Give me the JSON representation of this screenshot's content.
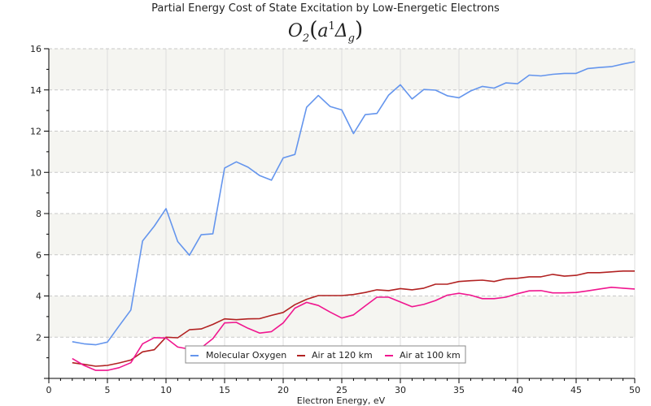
{
  "chart_data": {
    "type": "line",
    "title": "Partial Energy Cost of State Excitation by Low-Energetic Electrons",
    "subtitle": {
      "base": "O",
      "base_sub": "2",
      "open_paren": "(",
      "state": "a",
      "state_sup": "1",
      "term": "Δ",
      "term_sub": "g",
      "close_paren": ")"
    },
    "xlabel": "Electron Energy, eV",
    "ylabel": "",
    "xlim": [
      0,
      50
    ],
    "ylim": [
      0,
      16
    ],
    "x_ticks": [
      0,
      5,
      10,
      15,
      20,
      25,
      30,
      35,
      40,
      45,
      50
    ],
    "y_ticks": [
      2,
      4,
      6,
      8,
      10,
      12,
      14,
      16
    ],
    "grid": true,
    "legend_position": "bottom-center",
    "x": [
      2,
      3,
      4,
      5,
      6,
      7,
      8,
      9,
      10,
      11,
      12,
      13,
      14,
      15,
      16,
      17,
      18,
      19,
      20,
      21,
      22,
      23,
      24,
      25,
      26,
      27,
      28,
      29,
      30,
      31,
      32,
      33,
      34,
      35,
      36,
      37,
      38,
      39,
      40,
      41,
      42,
      43,
      44,
      45,
      46,
      47,
      48,
      49,
      50
    ],
    "series": [
      {
        "name": "Molecular Oxygen",
        "color": "#6495ED",
        "values": [
          1.78,
          1.68,
          1.63,
          1.76,
          2.55,
          3.32,
          6.67,
          7.39,
          8.24,
          6.64,
          5.98,
          6.97,
          7.02,
          10.21,
          10.51,
          10.25,
          9.84,
          9.62,
          10.7,
          10.87,
          13.16,
          13.73,
          13.2,
          13.03,
          11.88,
          12.8,
          12.86,
          13.75,
          14.25,
          13.56,
          14.02,
          13.99,
          13.72,
          13.62,
          13.95,
          14.17,
          14.09,
          14.34,
          14.3,
          14.72,
          14.68,
          14.76,
          14.8,
          14.8,
          15.04,
          15.09,
          15.13,
          15.26,
          15.37
        ]
      },
      {
        "name": "Air at 120 km",
        "color": "#B22222",
        "values": [
          0.76,
          0.68,
          0.59,
          0.63,
          0.75,
          0.89,
          1.29,
          1.39,
          2.0,
          1.97,
          2.36,
          2.4,
          2.62,
          2.89,
          2.85,
          2.89,
          2.9,
          3.06,
          3.2,
          3.58,
          3.84,
          4.02,
          4.02,
          4.02,
          4.07,
          4.17,
          4.3,
          4.26,
          4.36,
          4.3,
          4.38,
          4.57,
          4.57,
          4.7,
          4.74,
          4.77,
          4.7,
          4.83,
          4.86,
          4.93,
          4.93,
          5.05,
          4.96,
          5.0,
          5.13,
          5.13,
          5.17,
          5.21,
          5.21
        ]
      },
      {
        "name": "Air at 100 km",
        "color": "#F0168F",
        "values": [
          0.96,
          0.63,
          0.39,
          0.39,
          0.52,
          0.76,
          1.68,
          1.98,
          1.96,
          1.52,
          1.42,
          1.48,
          1.93,
          2.69,
          2.72,
          2.43,
          2.2,
          2.27,
          2.69,
          3.41,
          3.69,
          3.54,
          3.22,
          2.93,
          3.08,
          3.52,
          3.94,
          3.94,
          3.71,
          3.48,
          3.59,
          3.78,
          4.04,
          4.13,
          4.04,
          3.87,
          3.87,
          3.94,
          4.11,
          4.25,
          4.26,
          4.15,
          4.15,
          4.17,
          4.25,
          4.34,
          4.42,
          4.38,
          4.34
        ]
      }
    ]
  }
}
